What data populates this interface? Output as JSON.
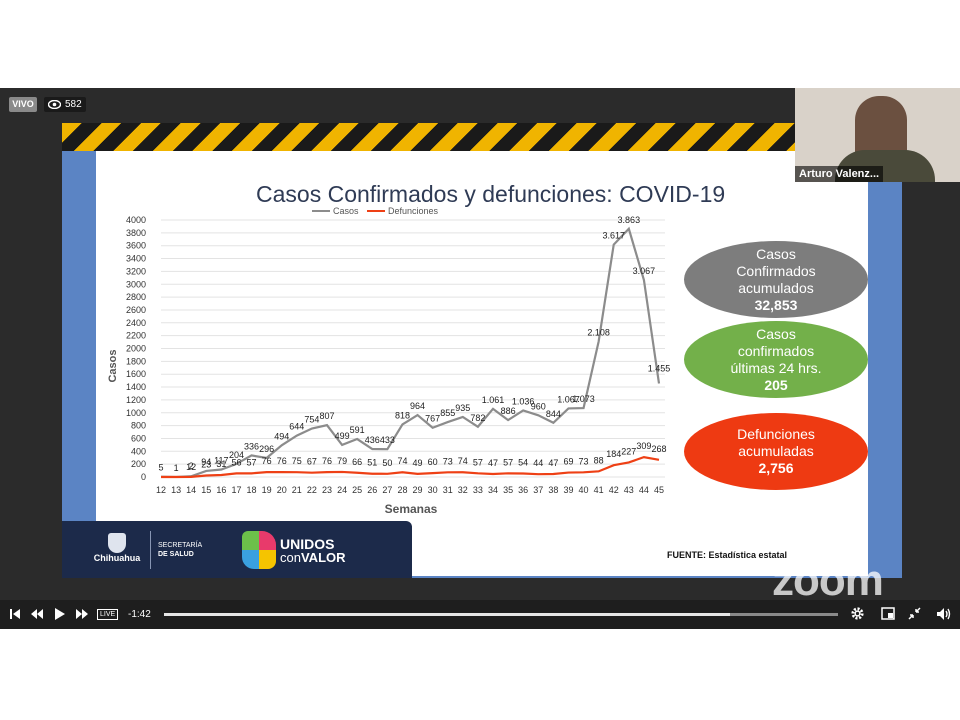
{
  "player": {
    "live_label": "VIVO",
    "viewer_count": "582",
    "time_remaining": "-1:42",
    "live_button": "LIVE",
    "progress_fraction": 0.84,
    "webcam_name": "Arturo Valenz...",
    "zoom_watermark": "zoom"
  },
  "slide": {
    "title": "Casos Confirmados y defunciones: COVID-19",
    "source": "FUENTE: Estadística estatal",
    "logos": {
      "chihuahua": "Chihuahua",
      "secretaria": "SECRETARÍA",
      "de_salud": "DE SALUD",
      "unidos": "UNIDOS",
      "con": "con",
      "valor": "VALOR"
    },
    "pills": {
      "gray": {
        "line1": "Casos",
        "line2": "Confirmados",
        "line3": "acumulados",
        "value": "32,853",
        "color": "#7d7d7d"
      },
      "green": {
        "line1": "Casos",
        "line2": "confirmados",
        "line3": "últimas 24 hrs.",
        "value": "205",
        "color": "#73b04a"
      },
      "red": {
        "line1": "Defunciones",
        "line2": "acumuladas",
        "value": "2,756",
        "color": "#ee3a12"
      }
    }
  },
  "chart_data": {
    "type": "line",
    "x": [
      "12",
      "13",
      "14",
      "15",
      "16",
      "17",
      "18",
      "19",
      "20",
      "21",
      "22",
      "23",
      "24",
      "25",
      "26",
      "27",
      "28",
      "29",
      "30",
      "31",
      "32",
      "33",
      "34",
      "35",
      "36",
      "37",
      "38",
      "39",
      "40",
      "41",
      "42",
      "43",
      "44",
      "45"
    ],
    "xlabel": "Semanas",
    "ylabel": "Casos",
    "ylim": [
      0,
      4000
    ],
    "yticks": [
      "0",
      "200",
      "400",
      "600",
      "800",
      "1000",
      "1200",
      "1400",
      "1600",
      "1800",
      "2000",
      "2200",
      "2400",
      "2600",
      "2800",
      "3000",
      "3200",
      "3400",
      "3600",
      "3800",
      "4000"
    ],
    "legend_position": "top",
    "grid": true,
    "series": [
      {
        "name": "Casos",
        "color": "#8c8c8c",
        "values": [
          5,
          1,
          12,
          94,
          117,
          204,
          336,
          296,
          494,
          644,
          754,
          807,
          499,
          591,
          436,
          433,
          818,
          964,
          767,
          855,
          935,
          782,
          1061,
          886,
          1036,
          960,
          844,
          1067,
          1073,
          2108,
          3617,
          3863,
          3067,
          1455
        ],
        "labels": [
          "5",
          "1",
          "12",
          "94",
          "117",
          "204",
          "336",
          "296",
          "494",
          "644",
          "754",
          "807",
          "499",
          "591",
          "436",
          "433",
          "818",
          "964",
          "767",
          "855",
          "935",
          "782",
          "1.061",
          "886",
          "1.036",
          "960",
          "844",
          "1.067",
          "1.073",
          "2.108",
          "3.617",
          "3.863",
          "3.067",
          "1.455"
        ]
      },
      {
        "name": "Defunciones",
        "color": "#ee4015",
        "values": [
          0,
          0,
          2,
          23,
          31,
          56,
          57,
          76,
          76,
          75,
          67,
          76,
          79,
          66,
          51,
          50,
          74,
          49,
          60,
          73,
          74,
          57,
          47,
          57,
          54,
          44,
          47,
          69,
          73,
          88,
          184,
          227,
          309,
          268
        ],
        "labels": [
          "",
          "",
          "2",
          "23",
          "31",
          "56",
          "57",
          "76",
          "76",
          "75",
          "67",
          "76",
          "79",
          "66",
          "51",
          "50",
          "74",
          "49",
          "60",
          "73",
          "74",
          "57",
          "47",
          "57",
          "54",
          "44",
          "47",
          "69",
          "73",
          "88",
          "184",
          "227",
          "309",
          "268"
        ]
      }
    ]
  }
}
